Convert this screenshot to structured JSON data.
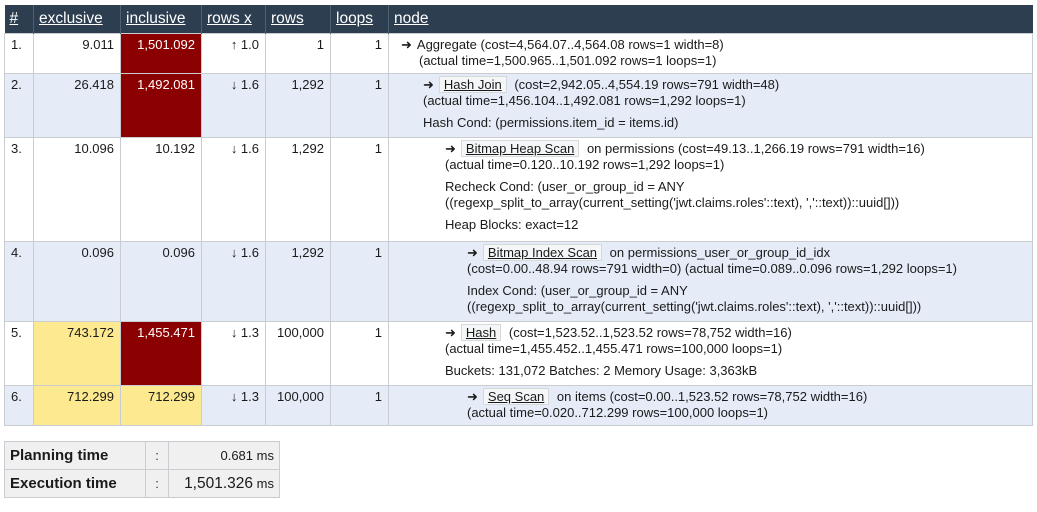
{
  "header": {
    "col_index": "#",
    "col_exclusive": "exclusive",
    "col_inclusive": "inclusive",
    "col_rows_x": "rows x",
    "col_rows": "rows",
    "col_loops": "loops",
    "col_node": "node"
  },
  "colors": {
    "header_bg": "#2c3e50",
    "hot": "#8b0000",
    "warm": "#fde98f",
    "row_alt": "#e5ecf7"
  },
  "rows": [
    {
      "idx": "1.",
      "exclusive": "9.011",
      "inclusive": "1,501.092",
      "rows_x": "↑ 1.0",
      "rows": "1",
      "loops": "1",
      "node_name": "Aggregate",
      "node_rest": "(cost=4,564.07..4,564.08 rows=1 width=8)",
      "actual": "(actual time=1,500.965..1,501.092 rows=1 loops=1)",
      "extra": []
    },
    {
      "idx": "2.",
      "exclusive": "26.418",
      "inclusive": "1,492.081",
      "rows_x": "↓ 1.6",
      "rows": "1,292",
      "loops": "1",
      "node_name": "Hash Join",
      "node_rest": "(cost=2,942.05..4,554.19 rows=791 width=48)",
      "actual": "(actual time=1,456.104..1,492.081 rows=1,292 loops=1)",
      "extra": [
        "Hash Cond: (permissions.item_id = items.id)"
      ]
    },
    {
      "idx": "3.",
      "exclusive": "10.096",
      "inclusive": "10.192",
      "rows_x": "↓ 1.6",
      "rows": "1,292",
      "loops": "1",
      "node_name": "Bitmap Heap Scan",
      "node_rest": "on permissions (cost=49.13..1,266.19 rows=791 width=16)",
      "actual": "(actual time=0.120..10.192 rows=1,292 loops=1)",
      "extra": [
        "Recheck Cond: (user_or_group_id = ANY",
        "((regexp_split_to_array(current_setting('jwt.claims.roles'::text), ','::text))::uuid[]))",
        "Heap Blocks: exact=12"
      ]
    },
    {
      "idx": "4.",
      "exclusive": "0.096",
      "inclusive": "0.096",
      "rows_x": "↓ 1.6",
      "rows": "1,292",
      "loops": "1",
      "node_name": "Bitmap Index Scan",
      "node_rest": "on permissions_user_or_group_id_idx",
      "actual": "(cost=0.00..48.94 rows=791 width=0) (actual time=0.089..0.096 rows=1,292 loops=1)",
      "extra": [
        "Index Cond: (user_or_group_id = ANY",
        "((regexp_split_to_array(current_setting('jwt.claims.roles'::text), ','::text))::uuid[]))"
      ]
    },
    {
      "idx": "5.",
      "exclusive": "743.172",
      "inclusive": "1,455.471",
      "rows_x": "↓ 1.3",
      "rows": "100,000",
      "loops": "1",
      "node_name": "Hash",
      "node_rest": "(cost=1,523.52..1,523.52 rows=78,752 width=16)",
      "actual": "(actual time=1,455.452..1,455.471 rows=100,000 loops=1)",
      "extra": [
        "Buckets: 131,072 Batches: 2 Memory Usage: 3,363kB"
      ]
    },
    {
      "idx": "6.",
      "exclusive": "712.299",
      "inclusive": "712.299",
      "rows_x": "↓ 1.3",
      "rows": "100,000",
      "loops": "1",
      "node_name": "Seq Scan",
      "node_rest": "on items (cost=0.00..1,523.52 rows=78,752 width=16)",
      "actual": "(actual time=0.020..712.299 rows=100,000 loops=1)",
      "extra": []
    }
  ],
  "summary": {
    "planning_label": "Planning time",
    "planning_sep": ":",
    "planning_value": "0.681",
    "planning_unit": "ms",
    "execution_label": "Execution time",
    "execution_sep": ":",
    "execution_value": "1,501.326",
    "execution_unit": "ms"
  }
}
